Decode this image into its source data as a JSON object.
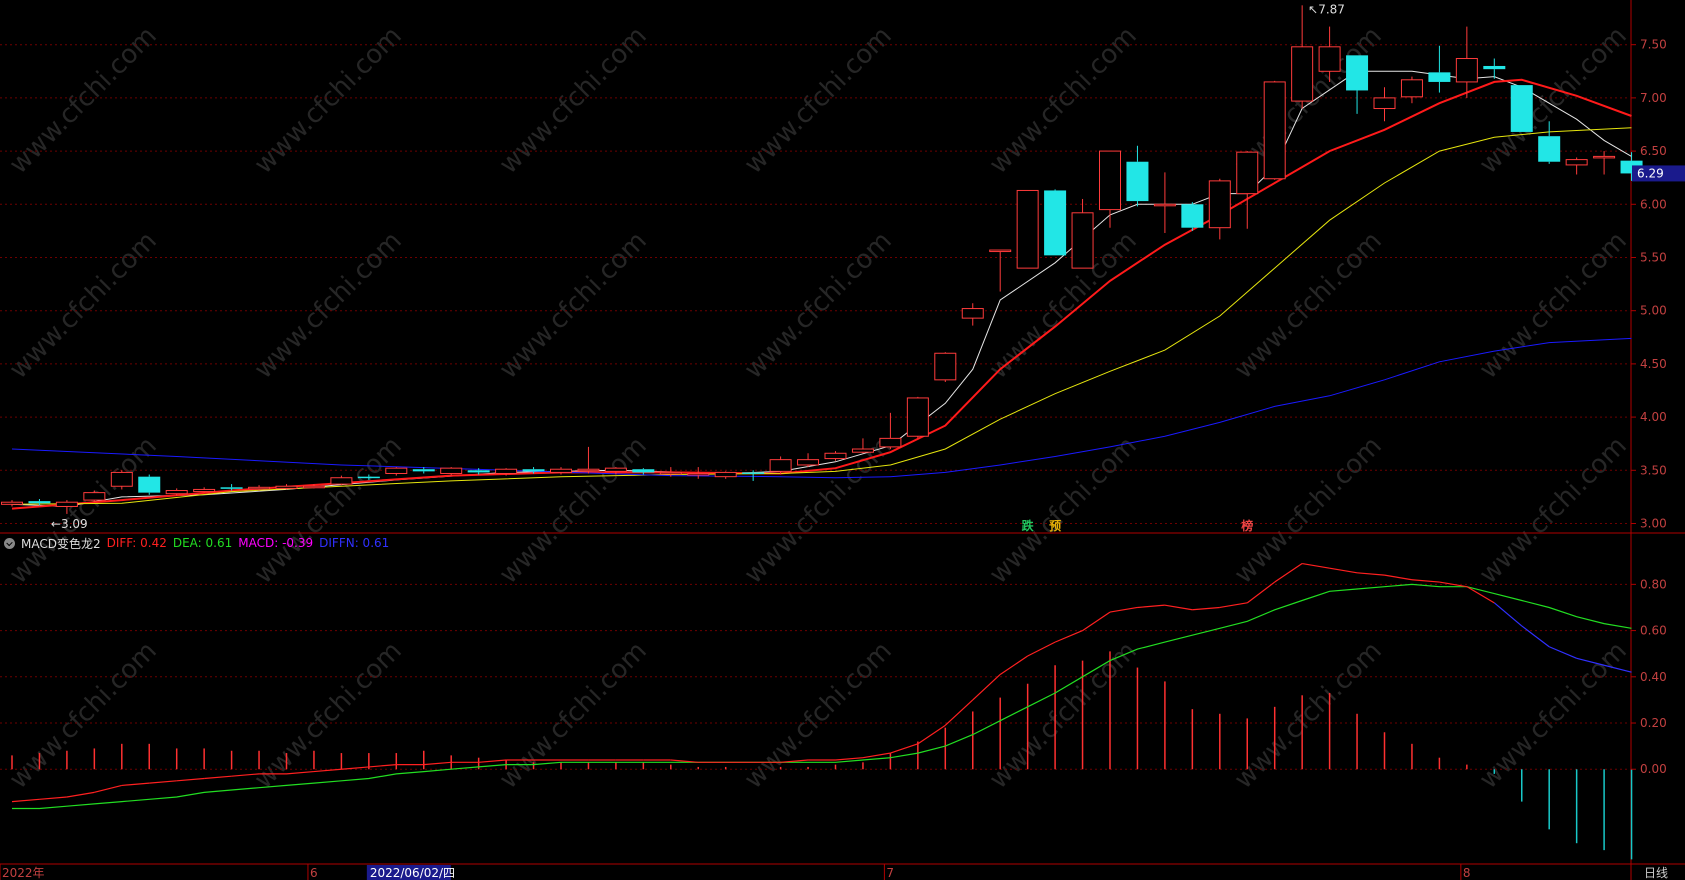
{
  "chart_data": [
    {
      "type": "candlestick",
      "title": "",
      "y_ticks": [
        "7.50",
        "7.00",
        "6.50",
        "6.00",
        "5.50",
        "5.00",
        "4.50",
        "4.00",
        "3.50",
        "3.00"
      ],
      "ylim": [
        2.92,
        7.92
      ],
      "grid": true,
      "current_price_label": "6.29",
      "high_annotation": "7.87",
      "low_annotation": "3.09",
      "markers": [
        {
          "text": "跌",
          "color": "#22c55e",
          "index": 37
        },
        {
          "text": "预",
          "color": "#eab308",
          "index": 38
        },
        {
          "text": "榜",
          "color": "#ef4444",
          "index": 45
        }
      ],
      "candles": [
        {
          "o": 3.18,
          "c": 3.2,
          "h": 3.22,
          "l": 3.16
        },
        {
          "o": 3.21,
          "c": 3.19,
          "h": 3.23,
          "l": 3.17
        },
        {
          "o": 3.16,
          "c": 3.2,
          "h": 3.22,
          "l": 3.09
        },
        {
          "o": 3.22,
          "c": 3.29,
          "h": 3.31,
          "l": 3.2
        },
        {
          "o": 3.35,
          "c": 3.48,
          "h": 3.5,
          "l": 3.32
        },
        {
          "o": 3.44,
          "c": 3.29,
          "h": 3.46,
          "l": 3.27
        },
        {
          "o": 3.28,
          "c": 3.31,
          "h": 3.33,
          "l": 3.26
        },
        {
          "o": 3.3,
          "c": 3.32,
          "h": 3.34,
          "l": 3.29
        },
        {
          "o": 3.34,
          "c": 3.33,
          "h": 3.37,
          "l": 3.31
        },
        {
          "o": 3.33,
          "c": 3.34,
          "h": 3.36,
          "l": 3.31
        },
        {
          "o": 3.33,
          "c": 3.35,
          "h": 3.37,
          "l": 3.32
        },
        {
          "o": 3.34,
          "c": 3.35,
          "h": 3.37,
          "l": 3.33
        },
        {
          "o": 3.37,
          "c": 3.43,
          "h": 3.45,
          "l": 3.36
        },
        {
          "o": 3.44,
          "c": 3.43,
          "h": 3.46,
          "l": 3.41
        },
        {
          "o": 3.47,
          "c": 3.52,
          "h": 3.53,
          "l": 3.45
        },
        {
          "o": 3.51,
          "c": 3.49,
          "h": 3.53,
          "l": 3.47
        },
        {
          "o": 3.47,
          "c": 3.52,
          "h": 3.53,
          "l": 3.45
        },
        {
          "o": 3.5,
          "c": 3.48,
          "h": 3.52,
          "l": 3.46
        },
        {
          "o": 3.47,
          "c": 3.51,
          "h": 3.52,
          "l": 3.45
        },
        {
          "o": 3.51,
          "c": 3.49,
          "h": 3.53,
          "l": 3.47
        },
        {
          "o": 3.48,
          "c": 3.51,
          "h": 3.53,
          "l": 3.46
        },
        {
          "o": 3.5,
          "c": 3.51,
          "h": 3.72,
          "l": 3.47
        },
        {
          "o": 3.49,
          "c": 3.52,
          "h": 3.53,
          "l": 3.46
        },
        {
          "o": 3.51,
          "c": 3.48,
          "h": 3.52,
          "l": 3.46
        },
        {
          "o": 3.47,
          "c": 3.48,
          "h": 3.53,
          "l": 3.44
        },
        {
          "o": 3.46,
          "c": 3.47,
          "h": 3.53,
          "l": 3.42
        },
        {
          "o": 3.44,
          "c": 3.48,
          "h": 3.49,
          "l": 3.42
        },
        {
          "o": 3.48,
          "c": 3.47,
          "h": 3.5,
          "l": 3.4
        },
        {
          "o": 3.49,
          "c": 3.6,
          "h": 3.63,
          "l": 3.46
        },
        {
          "o": 3.55,
          "c": 3.6,
          "h": 3.66,
          "l": 3.53
        },
        {
          "o": 3.61,
          "c": 3.66,
          "h": 3.68,
          "l": 3.59
        },
        {
          "o": 3.67,
          "c": 3.7,
          "h": 3.8,
          "l": 3.66
        },
        {
          "o": 3.72,
          "c": 3.8,
          "h": 4.04,
          "l": 3.7
        },
        {
          "o": 3.82,
          "c": 4.18,
          "h": 4.19,
          "l": 3.8
        },
        {
          "o": 4.35,
          "c": 4.6,
          "h": 4.61,
          "l": 4.33
        },
        {
          "o": 4.93,
          "c": 5.02,
          "h": 5.07,
          "l": 4.86
        },
        {
          "o": 5.57,
          "c": 5.57,
          "h": 5.57,
          "l": 5.18
        },
        {
          "o": 5.4,
          "c": 6.13,
          "h": 6.13,
          "l": 5.4
        },
        {
          "o": 6.13,
          "c": 5.52,
          "h": 6.14,
          "l": 5.52
        },
        {
          "o": 5.4,
          "c": 5.92,
          "h": 6.05,
          "l": 5.4
        },
        {
          "o": 5.95,
          "c": 6.5,
          "h": 6.5,
          "l": 5.78
        },
        {
          "o": 6.4,
          "c": 6.03,
          "h": 6.55,
          "l": 5.98
        },
        {
          "o": 6.0,
          "c": 6.0,
          "h": 6.3,
          "l": 5.73
        },
        {
          "o": 6.0,
          "c": 5.78,
          "h": 6.02,
          "l": 5.75
        },
        {
          "o": 5.78,
          "c": 6.22,
          "h": 6.24,
          "l": 5.67
        },
        {
          "o": 6.1,
          "c": 6.49,
          "h": 6.5,
          "l": 5.77
        },
        {
          "o": 6.24,
          "c": 7.15,
          "h": 7.16,
          "l": 6.23
        },
        {
          "o": 6.97,
          "c": 7.48,
          "h": 7.87,
          "l": 6.9
        },
        {
          "o": 7.25,
          "c": 7.48,
          "h": 7.67,
          "l": 7.15
        },
        {
          "o": 7.4,
          "c": 7.07,
          "h": 7.4,
          "l": 6.85
        },
        {
          "o": 6.9,
          "c": 7.0,
          "h": 7.1,
          "l": 6.78
        },
        {
          "o": 7.01,
          "c": 7.17,
          "h": 7.2,
          "l": 6.95
        },
        {
          "o": 7.24,
          "c": 7.15,
          "h": 7.49,
          "l": 7.05
        },
        {
          "o": 7.15,
          "c": 7.37,
          "h": 7.67,
          "l": 7.0
        },
        {
          "o": 7.3,
          "c": 7.27,
          "h": 7.37,
          "l": 7.18
        },
        {
          "o": 7.12,
          "c": 6.68,
          "h": 7.12,
          "l": 6.68
        },
        {
          "o": 6.64,
          "c": 6.4,
          "h": 6.78,
          "l": 6.38
        },
        {
          "o": 6.37,
          "c": 6.42,
          "h": 6.44,
          "l": 6.28
        },
        {
          "o": 6.44,
          "c": 6.45,
          "h": 6.5,
          "l": 6.28
        },
        {
          "o": 6.41,
          "c": 6.29,
          "h": 6.49,
          "l": 6.22
        }
      ],
      "ma_lines": [
        {
          "color": "#e5e5e5",
          "width": 1,
          "points": [
            [
              0,
              3.18
            ],
            [
              2,
              3.16
            ],
            [
              4,
              3.25
            ],
            [
              7,
              3.27
            ],
            [
              10,
              3.32
            ],
            [
              14,
              3.41
            ],
            [
              18,
              3.48
            ],
            [
              22,
              3.5
            ],
            [
              26,
              3.47
            ],
            [
              28,
              3.49
            ],
            [
              30,
              3.58
            ],
            [
              32,
              3.73
            ],
            [
              34,
              4.13
            ],
            [
              35,
              4.45
            ],
            [
              36,
              5.1
            ],
            [
              38,
              5.45
            ],
            [
              40,
              5.9
            ],
            [
              41,
              6.0
            ],
            [
              43,
              6.0
            ],
            [
              44,
              6.1
            ],
            [
              45,
              6.1
            ],
            [
              46,
              6.35
            ],
            [
              47,
              6.9
            ],
            [
              49,
              7.25
            ],
            [
              51,
              7.25
            ],
            [
              53,
              7.18
            ],
            [
              54,
              7.2
            ],
            [
              55,
              7.1
            ],
            [
              57,
              6.8
            ],
            [
              58,
              6.6
            ],
            [
              59,
              6.45
            ]
          ]
        },
        {
          "color": "#ff1a1a",
          "width": 2,
          "points": [
            [
              0,
              3.14
            ],
            [
              4,
              3.22
            ],
            [
              8,
              3.31
            ],
            [
              12,
              3.38
            ],
            [
              16,
              3.45
            ],
            [
              20,
              3.48
            ],
            [
              24,
              3.48
            ],
            [
              28,
              3.47
            ],
            [
              30,
              3.52
            ],
            [
              32,
              3.67
            ],
            [
              34,
              3.92
            ],
            [
              36,
              4.45
            ],
            [
              38,
              4.85
            ],
            [
              40,
              5.28
            ],
            [
              42,
              5.62
            ],
            [
              44,
              5.9
            ],
            [
              46,
              6.2
            ],
            [
              48,
              6.5
            ],
            [
              50,
              6.7
            ],
            [
              52,
              6.95
            ],
            [
              54,
              7.15
            ],
            [
              55,
              7.17
            ],
            [
              57,
              7.02
            ],
            [
              59,
              6.83
            ]
          ]
        },
        {
          "color": "#e5e50e",
          "width": 1,
          "points": [
            [
              0,
              3.18
            ],
            [
              4,
              3.19
            ],
            [
              8,
              3.3
            ],
            [
              12,
              3.35
            ],
            [
              16,
              3.4
            ],
            [
              20,
              3.44
            ],
            [
              24,
              3.46
            ],
            [
              28,
              3.47
            ],
            [
              30,
              3.49
            ],
            [
              32,
              3.55
            ],
            [
              34,
              3.7
            ],
            [
              36,
              3.98
            ],
            [
              38,
              4.22
            ],
            [
              40,
              4.43
            ],
            [
              42,
              4.63
            ],
            [
              44,
              4.95
            ],
            [
              46,
              5.4
            ],
            [
              48,
              5.85
            ],
            [
              50,
              6.2
            ],
            [
              52,
              6.5
            ],
            [
              54,
              6.63
            ],
            [
              56,
              6.68
            ],
            [
              59,
              6.72
            ]
          ]
        },
        {
          "color": "#1a1aff",
          "width": 1,
          "points": [
            [
              0,
              3.7
            ],
            [
              6,
              3.63
            ],
            [
              12,
              3.55
            ],
            [
              18,
              3.5
            ],
            [
              24,
              3.45
            ],
            [
              28,
              3.44
            ],
            [
              30,
              3.43
            ],
            [
              32,
              3.44
            ],
            [
              34,
              3.48
            ],
            [
              36,
              3.55
            ],
            [
              38,
              3.63
            ],
            [
              40,
              3.72
            ],
            [
              42,
              3.82
            ],
            [
              44,
              3.95
            ],
            [
              46,
              4.1
            ],
            [
              48,
              4.2
            ],
            [
              50,
              4.35
            ],
            [
              52,
              4.52
            ],
            [
              54,
              4.62
            ],
            [
              56,
              4.7
            ],
            [
              59,
              4.74
            ]
          ]
        }
      ]
    },
    {
      "type": "macd",
      "title": "MACD变色龙2",
      "legend": [
        {
          "label": "DIFF: 0.42",
          "color": "#ff2020"
        },
        {
          "label": "DEA: 0.61",
          "color": "#22dd22"
        },
        {
          "label": "MACD: -0.39",
          "color": "#ff00ff"
        },
        {
          "label": "DIFFN: 0.61",
          "color": "#3030ff"
        }
      ],
      "y_ticks": [
        "0.80",
        "0.60",
        "0.40",
        "0.20",
        "0.00"
      ],
      "ylim": [
        -0.41,
        0.94
      ],
      "grid": true,
      "histogram": [
        0.06,
        0.07,
        0.08,
        0.09,
        0.11,
        0.11,
        0.09,
        0.09,
        0.08,
        0.08,
        0.07,
        0.08,
        0.07,
        0.07,
        0.07,
        0.08,
        0.06,
        0.05,
        0.04,
        0.03,
        0.03,
        0.03,
        0.03,
        0.03,
        0.02,
        0.01,
        0.01,
        0.0,
        0.01,
        0.01,
        0.02,
        0.03,
        0.07,
        0.12,
        0.18,
        0.25,
        0.31,
        0.37,
        0.45,
        0.47,
        0.51,
        0.44,
        0.38,
        0.26,
        0.24,
        0.22,
        0.27,
        0.32,
        0.33,
        0.24,
        0.16,
        0.11,
        0.05,
        0.02,
        -0.02,
        -0.14,
        -0.26,
        -0.32,
        -0.35,
        -0.39
      ],
      "diff_line": [
        -0.14,
        -0.13,
        -0.12,
        -0.1,
        -0.07,
        -0.06,
        -0.05,
        -0.04,
        -0.03,
        -0.02,
        -0.02,
        -0.01,
        0.0,
        0.01,
        0.02,
        0.02,
        0.03,
        0.03,
        0.04,
        0.04,
        0.04,
        0.04,
        0.04,
        0.04,
        0.04,
        0.03,
        0.03,
        0.03,
        0.03,
        0.04,
        0.04,
        0.05,
        0.07,
        0.11,
        0.19,
        0.3,
        0.41,
        0.49,
        0.55,
        0.6,
        0.68,
        0.7,
        0.71,
        0.69,
        0.7,
        0.72,
        0.81,
        0.89,
        0.87,
        0.85,
        0.84,
        0.82,
        0.81,
        0.79,
        0.72,
        0.62,
        0.53,
        0.48,
        0.45,
        0.42
      ],
      "dea_line": [
        -0.17,
        -0.17,
        -0.16,
        -0.15,
        -0.14,
        -0.13,
        -0.12,
        -0.1,
        -0.09,
        -0.08,
        -0.07,
        -0.06,
        -0.05,
        -0.04,
        -0.02,
        -0.01,
        0.0,
        0.01,
        0.02,
        0.02,
        0.03,
        0.03,
        0.03,
        0.03,
        0.03,
        0.03,
        0.03,
        0.03,
        0.03,
        0.03,
        0.03,
        0.04,
        0.05,
        0.07,
        0.1,
        0.15,
        0.21,
        0.27,
        0.33,
        0.4,
        0.47,
        0.52,
        0.55,
        0.58,
        0.61,
        0.64,
        0.69,
        0.73,
        0.77,
        0.78,
        0.79,
        0.8,
        0.79,
        0.79,
        0.76,
        0.73,
        0.7,
        0.66,
        0.63,
        0.61
      ]
    }
  ],
  "x_axis": {
    "labels": [
      {
        "text": "2022年",
        "index": 0
      },
      {
        "text": "6",
        "index": 11
      },
      {
        "text": "7",
        "index": 32
      },
      {
        "text": "8",
        "index": 53
      }
    ],
    "cursor_label": "2022/06/02/四",
    "cursor_index": 13,
    "period_label": "日线"
  },
  "watermark": "www.cfchi.com"
}
